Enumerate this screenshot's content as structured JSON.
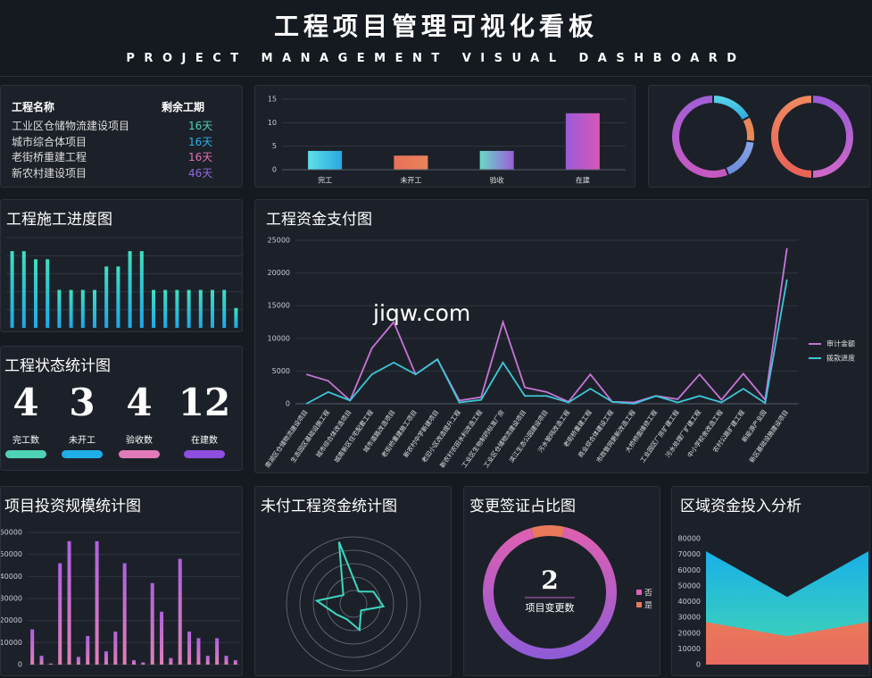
{
  "header": {
    "title": "工程项目管理可视化看板",
    "subtitle": "PROJECT MANAGEMENT VISUAL DASHBOARD"
  },
  "watermark": "jiqw.com",
  "table": {
    "headers": [
      "工程名称",
      "剩余工期"
    ],
    "rows": [
      [
        "工业区仓储物流建设项目",
        "16天"
      ],
      [
        "城市综合体项目",
        "16天"
      ],
      [
        "老街桥重建工程",
        "16天"
      ],
      [
        "新农村建设项目",
        "46天"
      ]
    ],
    "colors": [
      "#4fd1b5",
      "#2ab0e8",
      "#e070b8",
      "#9468e0"
    ]
  },
  "status": {
    "title": "工程状态统计图",
    "items": [
      {
        "value": 4,
        "label": "完工数",
        "color": "#4fd1b5"
      },
      {
        "value": 3,
        "label": "未开工",
        "color": "#1eaee8"
      },
      {
        "value": 4,
        "label": "验收数",
        "color": "#e07ab8"
      },
      {
        "value": 12,
        "label": "在建数",
        "color": "#8e4ee0"
      }
    ]
  },
  "chart_data": [
    {
      "type": "bar",
      "categories": [
        "完工",
        "未开工",
        "验收",
        "在建"
      ],
      "values": [
        4,
        3,
        4,
        12
      ],
      "colors": [
        [
          "#5ee0e8",
          "#28a8e0"
        ],
        [
          "#e8705a",
          "#e8845a"
        ],
        [
          "#6ad8c8",
          "#9a60d8"
        ],
        [
          "#9a5ad8",
          "#d858b8"
        ]
      ],
      "ylim": [
        0,
        15
      ],
      "yticks": [
        0,
        5,
        10,
        15
      ],
      "grid": true
    },
    {
      "type": "pie",
      "values": [
        17,
        10,
        17,
        56
      ],
      "colors": [
        [
          "#5ed8e8",
          "#2aa8e0"
        ],
        "#e8895a",
        [
          "#8aa8e8",
          "#6a88d8"
        ],
        [
          "#a060d8",
          "#c858c0"
        ]
      ]
    },
    {
      "type": "pie",
      "values": [
        50,
        50
      ],
      "colors": [
        [
          "#9a5ad8",
          "#d068c8"
        ],
        [
          "#f08a60",
          "#e86058"
        ]
      ]
    },
    {
      "type": "bar",
      "title": "工程施工进度图",
      "values": [
        85,
        85,
        76,
        76,
        42,
        42,
        42,
        42,
        68,
        68,
        85,
        85,
        42,
        42,
        42,
        42,
        42,
        42,
        42,
        22
      ],
      "color": [
        "#3ee0c0",
        "#1ea8e8"
      ],
      "ylim": [
        0,
        100
      ]
    },
    {
      "type": "line",
      "title": "工程资金支付图",
      "categories": [
        "南湖区仓储物流建设项目",
        "生态园区基础设施工程",
        "城市综合体改造项目",
        "城南新区住宅配套工程",
        "城市道路改造项目",
        "老街桥重建施工项目",
        "新农村中学新建项目",
        "老旧小区改造提升工程",
        "新农村农田水利改造工程",
        "工业区生物制药标准厂房",
        "工业区仓储物流建设项目",
        "滨江生态公园建设项目",
        "污水管网改造工程",
        "老街桥重建工程",
        "商业综合体建设工程",
        "市政管网更新改造工程",
        "大桥桥面维修工程",
        "工业园区厂房扩建工程",
        "污水处理厂扩建工程",
        "中小学校舍改造工程",
        "农村公路扩建工程",
        "新能源产业园",
        "新区基础设施建设项目"
      ],
      "series": [
        {
          "name": "审计金额",
          "color": "#c874d8",
          "values": [
            4500,
            3500,
            500,
            8500,
            12500,
            4500,
            6800,
            500,
            1000,
            12500,
            2500,
            1800,
            300,
            4500,
            300,
            200,
            1200,
            700,
            4500,
            600,
            4600,
            600,
            23800
          ]
        },
        {
          "name": "拨款进度",
          "color": "#3ec6d8",
          "values": [
            0,
            1800,
            500,
            4500,
            6300,
            4500,
            6800,
            200,
            600,
            6300,
            1200,
            1200,
            200,
            2300,
            300,
            0,
            1200,
            200,
            1200,
            200,
            2300,
            100,
            19000
          ]
        }
      ],
      "ylim": [
        0,
        25000
      ],
      "yticks": [
        0,
        5000,
        10000,
        15000,
        20000,
        25000
      ],
      "grid": true,
      "legend": "right"
    },
    {
      "type": "bar",
      "title": "项目投资规模统计图",
      "values": [
        16000,
        4000,
        500,
        46000,
        56000,
        3500,
        13000,
        56000,
        6000,
        15000,
        46000,
        2000,
        1000,
        37000,
        24000,
        3000,
        48000,
        15000,
        12000,
        4000,
        12000,
        4000,
        2000
      ],
      "color": [
        "#b060e0",
        "#e080b8"
      ],
      "ylim": [
        0,
        60000
      ],
      "yticks": [
        0,
        10000,
        20000,
        30000,
        40000,
        50000,
        60000
      ],
      "grid": true
    },
    {
      "type": "radar",
      "title": "未付工程资金统计图",
      "values": [
        95,
        20,
        35,
        45,
        15,
        40,
        25,
        30,
        55,
        20
      ],
      "color": "#3ed6c0",
      "rlim": [
        0,
        100
      ]
    },
    {
      "type": "pie",
      "title": "变更签证占比图",
      "center_value": 2,
      "center_label": "项目变更数",
      "labels": [
        "否",
        "是"
      ],
      "values": [
        92,
        8
      ],
      "colors": [
        [
          "#e060b0",
          "#8e5bd8"
        ],
        "#e8795a"
      ],
      "legend": "right"
    },
    {
      "type": "area",
      "title": "区域资金投入分析",
      "series": [
        {
          "color": [
            "#1ab0e8",
            "#44d8b0"
          ],
          "values": [
            72000,
            43000,
            72000
          ]
        },
        {
          "color": [
            "#e8795a",
            "#e86a60"
          ],
          "values": [
            27000,
            18000,
            27000
          ]
        }
      ],
      "ylim": [
        0,
        80000
      ],
      "yticks": [
        0,
        10000,
        20000,
        30000,
        40000,
        50000,
        60000,
        70000,
        80000
      ]
    }
  ]
}
